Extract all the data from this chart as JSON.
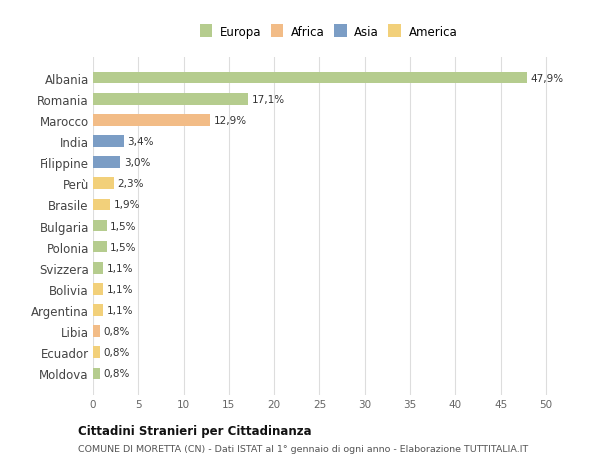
{
  "countries": [
    "Albania",
    "Romania",
    "Marocco",
    "India",
    "Filippine",
    "Perù",
    "Brasile",
    "Bulgaria",
    "Polonia",
    "Svizzera",
    "Bolivia",
    "Argentina",
    "Libia",
    "Ecuador",
    "Moldova"
  ],
  "values": [
    47.9,
    17.1,
    12.9,
    3.4,
    3.0,
    2.3,
    1.9,
    1.5,
    1.5,
    1.1,
    1.1,
    1.1,
    0.8,
    0.8,
    0.8
  ],
  "labels": [
    "47,9%",
    "17,1%",
    "12,9%",
    "3,4%",
    "3,0%",
    "2,3%",
    "1,9%",
    "1,5%",
    "1,5%",
    "1,1%",
    "1,1%",
    "1,1%",
    "0,8%",
    "0,8%",
    "0,8%"
  ],
  "continents": [
    "Europa",
    "Europa",
    "Africa",
    "Asia",
    "Asia",
    "America",
    "America",
    "Europa",
    "Europa",
    "Europa",
    "America",
    "America",
    "Africa",
    "America",
    "Europa"
  ],
  "colors": {
    "Europa": "#b5cc8e",
    "Africa": "#f2bc87",
    "Asia": "#7b9dc5",
    "America": "#f2d07a"
  },
  "xlim": [
    0,
    52
  ],
  "xticks": [
    0,
    5,
    10,
    15,
    20,
    25,
    30,
    35,
    40,
    45,
    50
  ],
  "title": "Cittadini Stranieri per Cittadinanza",
  "subtitle": "COMUNE DI MORETTA (CN) - Dati ISTAT al 1° gennaio di ogni anno - Elaborazione TUTTITALIA.IT",
  "background_color": "#ffffff",
  "grid_color": "#dddddd",
  "bar_height": 0.55
}
